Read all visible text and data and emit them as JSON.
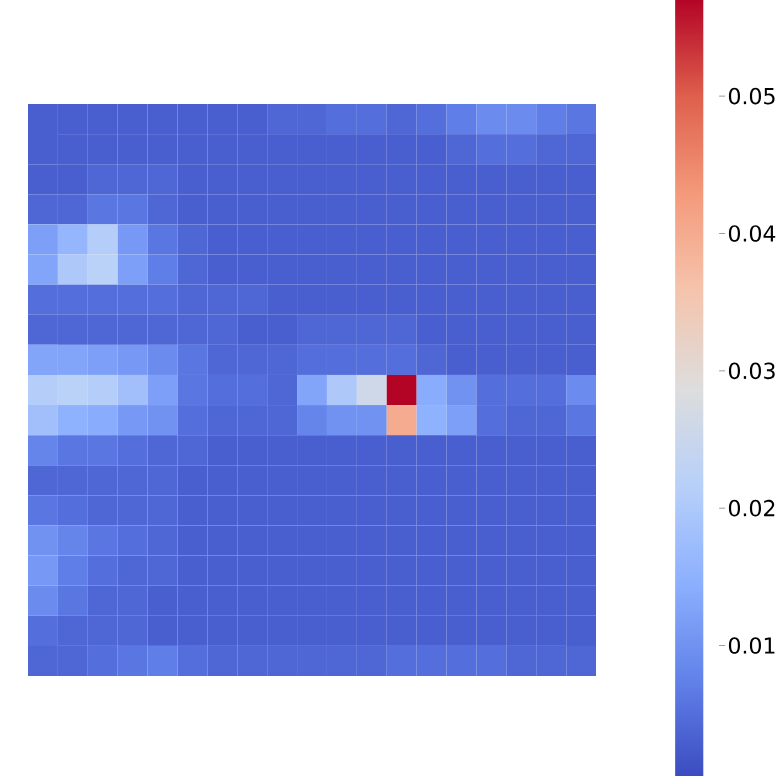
{
  "chart_data": {
    "type": "heatmap",
    "categories": [
      null,
      null,
      null,
      null,
      null,
      null,
      null,
      null,
      null,
      null,
      null,
      null,
      null,
      null,
      null,
      null,
      null,
      null,
      null
    ],
    "y_categories": [
      null,
      null,
      null,
      null,
      null,
      null,
      null,
      null,
      null,
      null,
      null,
      null,
      null,
      null,
      null,
      null,
      null,
      null,
      null
    ],
    "cells": [
      [
        0.003,
        0.003,
        0.003,
        0.003,
        0.003,
        0.003,
        0.003,
        0.003,
        0.004,
        0.004,
        0.005,
        0.005,
        0.004,
        0.005,
        0.007,
        0.009,
        0.009,
        0.007,
        0.006
      ],
      [
        0.003,
        0.003,
        0.003,
        0.003,
        0.003,
        0.003,
        0.003,
        0.003,
        0.003,
        0.003,
        0.003,
        0.003,
        0.003,
        0.003,
        0.004,
        0.005,
        0.005,
        0.004,
        0.004
      ],
      [
        0.003,
        0.003,
        0.004,
        0.004,
        0.004,
        0.003,
        0.003,
        0.003,
        0.003,
        0.003,
        0.003,
        0.003,
        0.003,
        0.003,
        0.003,
        0.003,
        0.003,
        0.003,
        0.003
      ],
      [
        0.004,
        0.004,
        0.006,
        0.006,
        0.004,
        0.003,
        0.003,
        0.003,
        0.003,
        0.003,
        0.003,
        0.003,
        0.003,
        0.003,
        0.003,
        0.003,
        0.003,
        0.003,
        0.003
      ],
      [
        0.012,
        0.016,
        0.021,
        0.011,
        0.006,
        0.004,
        0.003,
        0.003,
        0.003,
        0.003,
        0.003,
        0.003,
        0.003,
        0.003,
        0.003,
        0.003,
        0.003,
        0.003,
        0.003
      ],
      [
        0.013,
        0.02,
        0.022,
        0.012,
        0.007,
        0.004,
        0.003,
        0.003,
        0.003,
        0.003,
        0.003,
        0.003,
        0.003,
        0.003,
        0.003,
        0.003,
        0.003,
        0.003,
        0.003
      ],
      [
        0.005,
        0.005,
        0.005,
        0.005,
        0.005,
        0.004,
        0.004,
        0.004,
        0.003,
        0.003,
        0.003,
        0.003,
        0.003,
        0.003,
        0.003,
        0.003,
        0.003,
        0.003,
        0.003
      ],
      [
        0.004,
        0.004,
        0.004,
        0.004,
        0.004,
        0.004,
        0.004,
        0.003,
        0.003,
        0.004,
        0.004,
        0.004,
        0.004,
        0.003,
        0.003,
        0.003,
        0.003,
        0.003,
        0.003
      ],
      [
        0.013,
        0.013,
        0.012,
        0.011,
        0.009,
        0.006,
        0.004,
        0.004,
        0.004,
        0.005,
        0.005,
        0.005,
        0.005,
        0.004,
        0.003,
        0.003,
        0.003,
        0.003,
        0.003
      ],
      [
        0.021,
        0.022,
        0.021,
        0.018,
        0.012,
        0.006,
        0.005,
        0.005,
        0.004,
        0.013,
        0.02,
        0.026,
        0.057,
        0.014,
        0.01,
        0.005,
        0.005,
        0.005,
        0.009
      ],
      [
        0.018,
        0.015,
        0.014,
        0.011,
        0.01,
        0.005,
        0.004,
        0.004,
        0.004,
        0.008,
        0.01,
        0.01,
        0.04,
        0.015,
        0.012,
        0.005,
        0.004,
        0.004,
        0.006
      ],
      [
        0.008,
        0.006,
        0.006,
        0.005,
        0.004,
        0.004,
        0.003,
        0.003,
        0.003,
        0.003,
        0.003,
        0.003,
        0.003,
        0.003,
        0.003,
        0.003,
        0.003,
        0.003,
        0.003
      ],
      [
        0.004,
        0.004,
        0.004,
        0.004,
        0.004,
        0.003,
        0.003,
        0.003,
        0.003,
        0.003,
        0.003,
        0.003,
        0.003,
        0.003,
        0.003,
        0.003,
        0.003,
        0.003,
        0.003
      ],
      [
        0.006,
        0.005,
        0.004,
        0.004,
        0.004,
        0.003,
        0.003,
        0.003,
        0.003,
        0.003,
        0.003,
        0.003,
        0.003,
        0.003,
        0.003,
        0.003,
        0.003,
        0.003,
        0.003
      ],
      [
        0.01,
        0.008,
        0.006,
        0.005,
        0.004,
        0.003,
        0.003,
        0.003,
        0.003,
        0.003,
        0.003,
        0.003,
        0.003,
        0.003,
        0.003,
        0.003,
        0.003,
        0.003,
        0.003
      ],
      [
        0.011,
        0.007,
        0.005,
        0.004,
        0.004,
        0.003,
        0.003,
        0.003,
        0.003,
        0.003,
        0.003,
        0.003,
        0.003,
        0.003,
        0.003,
        0.003,
        0.003,
        0.003,
        0.003
      ],
      [
        0.009,
        0.006,
        0.004,
        0.004,
        0.003,
        0.003,
        0.003,
        0.003,
        0.003,
        0.003,
        0.003,
        0.003,
        0.003,
        0.003,
        0.003,
        0.003,
        0.003,
        0.003,
        0.003
      ],
      [
        0.005,
        0.004,
        0.004,
        0.004,
        0.003,
        0.003,
        0.003,
        0.003,
        0.003,
        0.003,
        0.003,
        0.003,
        0.003,
        0.003,
        0.003,
        0.003,
        0.003,
        0.003,
        0.003
      ],
      [
        0.004,
        0.004,
        0.005,
        0.006,
        0.007,
        0.005,
        0.004,
        0.004,
        0.004,
        0.004,
        0.004,
        0.004,
        0.005,
        0.005,
        0.005,
        0.005,
        0.004,
        0.004,
        0.004
      ]
    ],
    "clim": [
      0.0005,
      0.057
    ],
    "cticks": [
      0.01,
      0.02,
      0.03,
      0.04,
      0.05
    ],
    "tick_labels": false
  }
}
